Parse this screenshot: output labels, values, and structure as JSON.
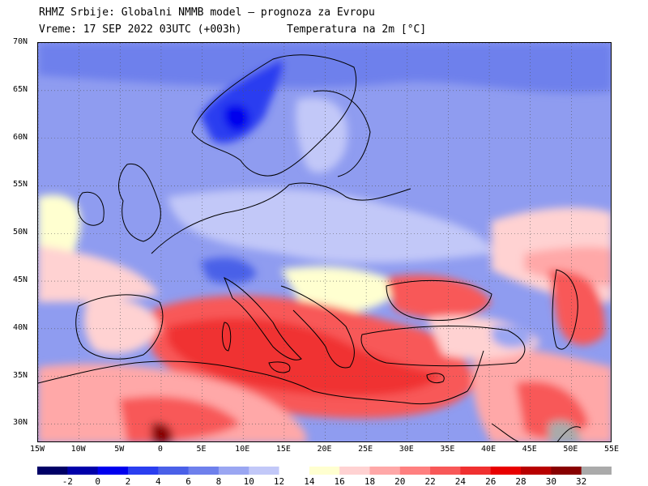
{
  "header": {
    "line1": "RHMZ Srbije: Globalni NMMB model — prognoza za Evropu",
    "time": "Vreme: 17 SEP 2022 03UTC (+003h)",
    "field": "Temperatura na 2m [°C]"
  },
  "map": {
    "lat_labels": [
      "70N",
      "65N",
      "60N",
      "55N",
      "50N",
      "45N",
      "40N",
      "35N",
      "30N"
    ],
    "lon_labels": [
      "15W",
      "10W",
      "5W",
      "0",
      "5E",
      "10E",
      "15E",
      "20E",
      "25E",
      "30E",
      "35E",
      "40E",
      "45E",
      "50E",
      "55E"
    ],
    "lon_extent": [
      -15,
      55
    ],
    "lat_extent": [
      28,
      70
    ]
  },
  "colorbar": {
    "colors": [
      "#000066",
      "#0000aa",
      "#0000ee",
      "#2a3ef0",
      "#4a60e8",
      "#6e80ec",
      "#9aa6f2",
      "#c2c8f8",
      "#ffffff",
      "#ffffd0",
      "#ffd2d2",
      "#ffa8a8",
      "#ff8080",
      "#f85858",
      "#f03030",
      "#e80000",
      "#b80000",
      "#880000",
      "#aaaaaa"
    ],
    "labels": [
      "-2",
      "0",
      "2",
      "4",
      "6",
      "8",
      "10",
      "12",
      "14",
      "16",
      "18",
      "20",
      "22",
      "24",
      "26",
      "28",
      "30",
      "32"
    ]
  }
}
